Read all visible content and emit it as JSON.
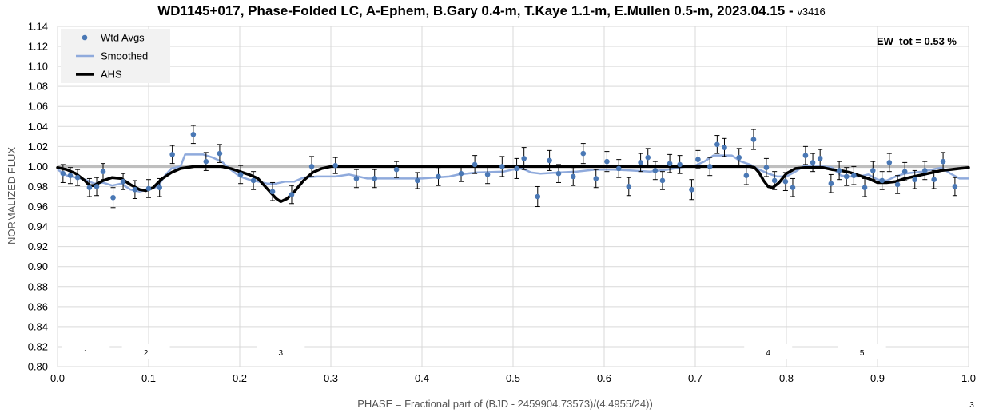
{
  "chart_data": {
    "type": "scatter",
    "title": "WD1145+017, Phase-Folded LC, A-Ephem, B.Gary 0.4-m, T.Kaye 1.1-m, E.Mullen 0.5-m, 2023.04.15 -",
    "title_version": "v3416",
    "xlabel": "PHASE = Fractional part of (BJD - 2459904.73573)/(4.4955/24))",
    "ylabel": "NORMALIZED FLUX",
    "xlim": [
      0.0,
      1.0
    ],
    "ylim": [
      0.8,
      1.14
    ],
    "xticks": [
      "0.0",
      "0.1",
      "0.2",
      "0.3",
      "0.4",
      "0.5",
      "0.6",
      "0.7",
      "0.8",
      "0.9",
      "1.0"
    ],
    "yticks": [
      "0.80",
      "0.82",
      "0.84",
      "0.86",
      "0.88",
      "0.90",
      "0.92",
      "0.94",
      "0.96",
      "0.98",
      "1.00",
      "1.02",
      "1.04",
      "1.06",
      "1.08",
      "1.10",
      "1.12",
      "1.14"
    ],
    "grid": true,
    "reference_line": 1.0,
    "legend_position": "top-left",
    "legend": [
      "Wtd Avgs",
      "Smoothed",
      "AHS"
    ],
    "annotation": "EW_tot = 0.53 %",
    "corner_note": "3",
    "colors": {
      "points": "#4a78b5",
      "smoothed": "#8faadc",
      "ahs": "#000000",
      "reference": "#bfbfbf"
    },
    "dip_labels": [
      {
        "x": 0.031,
        "label": "1"
      },
      {
        "x": 0.097,
        "label": "2"
      },
      {
        "x": 0.245,
        "label": "3"
      },
      {
        "x": 0.78,
        "label": "4"
      },
      {
        "x": 0.883,
        "label": "5"
      }
    ],
    "series": [
      {
        "name": "Wtd Avgs",
        "type": "scatter",
        "points": [
          {
            "x": 0.006,
            "y": 0.993,
            "err": 0.009
          },
          {
            "x": 0.014,
            "y": 0.991,
            "err": 0.008
          },
          {
            "x": 0.022,
            "y": 0.989,
            "err": 0.008
          },
          {
            "x": 0.035,
            "y": 0.979,
            "err": 0.009
          },
          {
            "x": 0.043,
            "y": 0.98,
            "err": 0.009
          },
          {
            "x": 0.05,
            "y": 0.995,
            "err": 0.008
          },
          {
            "x": 0.061,
            "y": 0.969,
            "err": 0.01
          },
          {
            "x": 0.072,
            "y": 0.985,
            "err": 0.008
          },
          {
            "x": 0.085,
            "y": 0.977,
            "err": 0.009
          },
          {
            "x": 0.1,
            "y": 0.978,
            "err": 0.009
          },
          {
            "x": 0.112,
            "y": 0.979,
            "err": 0.009
          },
          {
            "x": 0.126,
            "y": 1.012,
            "err": 0.009
          },
          {
            "x": 0.149,
            "y": 1.032,
            "err": 0.009
          },
          {
            "x": 0.163,
            "y": 1.005,
            "err": 0.009
          },
          {
            "x": 0.178,
            "y": 1.013,
            "err": 0.009
          },
          {
            "x": 0.201,
            "y": 0.992,
            "err": 0.009
          },
          {
            "x": 0.215,
            "y": 0.986,
            "err": 0.009
          },
          {
            "x": 0.236,
            "y": 0.975,
            "err": 0.009
          },
          {
            "x": 0.257,
            "y": 0.972,
            "err": 0.009
          },
          {
            "x": 0.279,
            "y": 1.0,
            "err": 0.01
          },
          {
            "x": 0.305,
            "y": 1.001,
            "err": 0.008
          },
          {
            "x": 0.328,
            "y": 0.988,
            "err": 0.009
          },
          {
            "x": 0.348,
            "y": 0.988,
            "err": 0.009
          },
          {
            "x": 0.372,
            "y": 0.997,
            "err": 0.008
          },
          {
            "x": 0.395,
            "y": 0.986,
            "err": 0.008
          },
          {
            "x": 0.418,
            "y": 0.99,
            "err": 0.009
          },
          {
            "x": 0.443,
            "y": 0.993,
            "err": 0.008
          },
          {
            "x": 0.458,
            "y": 1.002,
            "err": 0.009
          },
          {
            "x": 0.472,
            "y": 0.992,
            "err": 0.009
          },
          {
            "x": 0.488,
            "y": 1.0,
            "err": 0.01
          },
          {
            "x": 0.504,
            "y": 0.998,
            "err": 0.01
          },
          {
            "x": 0.512,
            "y": 1.008,
            "err": 0.011
          },
          {
            "x": 0.527,
            "y": 0.97,
            "err": 0.01
          },
          {
            "x": 0.54,
            "y": 1.006,
            "err": 0.01
          },
          {
            "x": 0.55,
            "y": 0.993,
            "err": 0.009
          },
          {
            "x": 0.566,
            "y": 0.99,
            "err": 0.009
          },
          {
            "x": 0.577,
            "y": 1.013,
            "err": 0.01
          },
          {
            "x": 0.591,
            "y": 0.988,
            "err": 0.009
          },
          {
            "x": 0.603,
            "y": 1.005,
            "err": 0.01
          },
          {
            "x": 0.616,
            "y": 0.998,
            "err": 0.009
          },
          {
            "x": 0.627,
            "y": 0.98,
            "err": 0.009
          },
          {
            "x": 0.64,
            "y": 1.004,
            "err": 0.009
          },
          {
            "x": 0.648,
            "y": 1.009,
            "err": 0.009
          },
          {
            "x": 0.656,
            "y": 0.996,
            "err": 0.009
          },
          {
            "x": 0.664,
            "y": 0.986,
            "err": 0.009
          },
          {
            "x": 0.672,
            "y": 1.003,
            "err": 0.009
          },
          {
            "x": 0.683,
            "y": 1.002,
            "err": 0.009
          },
          {
            "x": 0.696,
            "y": 0.977,
            "err": 0.01
          },
          {
            "x": 0.703,
            "y": 1.007,
            "err": 0.009
          },
          {
            "x": 0.716,
            "y": 1.0,
            "err": 0.009
          },
          {
            "x": 0.724,
            "y": 1.022,
            "err": 0.009
          },
          {
            "x": 0.732,
            "y": 1.019,
            "err": 0.009
          },
          {
            "x": 0.748,
            "y": 1.009,
            "err": 0.009
          },
          {
            "x": 0.756,
            "y": 0.991,
            "err": 0.009
          },
          {
            "x": 0.764,
            "y": 1.027,
            "err": 0.01
          },
          {
            "x": 0.778,
            "y": 0.999,
            "err": 0.009
          },
          {
            "x": 0.787,
            "y": 0.986,
            "err": 0.009
          },
          {
            "x": 0.799,
            "y": 0.985,
            "err": 0.009
          },
          {
            "x": 0.807,
            "y": 0.979,
            "err": 0.009
          },
          {
            "x": 0.821,
            "y": 1.011,
            "err": 0.009
          },
          {
            "x": 0.829,
            "y": 1.004,
            "err": 0.009
          },
          {
            "x": 0.837,
            "y": 1.008,
            "err": 0.009
          },
          {
            "x": 0.849,
            "y": 0.983,
            "err": 0.009
          },
          {
            "x": 0.858,
            "y": 0.996,
            "err": 0.009
          },
          {
            "x": 0.866,
            "y": 0.99,
            "err": 0.009
          },
          {
            "x": 0.874,
            "y": 0.991,
            "err": 0.009
          },
          {
            "x": 0.886,
            "y": 0.979,
            "err": 0.009
          },
          {
            "x": 0.895,
            "y": 0.996,
            "err": 0.009
          },
          {
            "x": 0.905,
            "y": 0.986,
            "err": 0.009
          },
          {
            "x": 0.913,
            "y": 1.004,
            "err": 0.009
          },
          {
            "x": 0.922,
            "y": 0.982,
            "err": 0.009
          },
          {
            "x": 0.93,
            "y": 0.995,
            "err": 0.009
          },
          {
            "x": 0.941,
            "y": 0.987,
            "err": 0.009
          },
          {
            "x": 0.952,
            "y": 0.996,
            "err": 0.009
          },
          {
            "x": 0.962,
            "y": 0.987,
            "err": 0.009
          },
          {
            "x": 0.972,
            "y": 1.005,
            "err": 0.009
          },
          {
            "x": 0.985,
            "y": 0.98,
            "err": 0.009
          }
        ]
      },
      {
        "name": "Smoothed",
        "type": "line",
        "points": [
          {
            "x": 0.0,
            "y": 0.997
          },
          {
            "x": 0.01,
            "y": 0.991
          },
          {
            "x": 0.02,
            "y": 0.989
          },
          {
            "x": 0.03,
            "y": 0.987
          },
          {
            "x": 0.04,
            "y": 0.983
          },
          {
            "x": 0.05,
            "y": 0.984
          },
          {
            "x": 0.06,
            "y": 0.981
          },
          {
            "x": 0.07,
            "y": 0.983
          },
          {
            "x": 0.08,
            "y": 0.977
          },
          {
            "x": 0.09,
            "y": 0.975
          },
          {
            "x": 0.1,
            "y": 0.977
          },
          {
            "x": 0.11,
            "y": 0.98
          },
          {
            "x": 0.118,
            "y": 0.991
          },
          {
            "x": 0.125,
            "y": 0.998
          },
          {
            "x": 0.135,
            "y": 1.0
          },
          {
            "x": 0.14,
            "y": 1.012
          },
          {
            "x": 0.16,
            "y": 1.012
          },
          {
            "x": 0.17,
            "y": 1.009
          },
          {
            "x": 0.18,
            "y": 1.005
          },
          {
            "x": 0.19,
            "y": 0.997
          },
          {
            "x": 0.2,
            "y": 0.99
          },
          {
            "x": 0.21,
            "y": 0.987
          },
          {
            "x": 0.22,
            "y": 0.985
          },
          {
            "x": 0.23,
            "y": 0.983
          },
          {
            "x": 0.24,
            "y": 0.983
          },
          {
            "x": 0.25,
            "y": 0.985
          },
          {
            "x": 0.26,
            "y": 0.985
          },
          {
            "x": 0.27,
            "y": 0.989
          },
          {
            "x": 0.285,
            "y": 0.99
          },
          {
            "x": 0.305,
            "y": 0.99
          },
          {
            "x": 0.32,
            "y": 0.992
          },
          {
            "x": 0.34,
            "y": 0.988
          },
          {
            "x": 0.4,
            "y": 0.988
          },
          {
            "x": 0.43,
            "y": 0.99
          },
          {
            "x": 0.44,
            "y": 0.992
          },
          {
            "x": 0.46,
            "y": 0.994
          },
          {
            "x": 0.49,
            "y": 0.995
          },
          {
            "x": 0.5,
            "y": 0.997
          },
          {
            "x": 0.51,
            "y": 0.998
          },
          {
            "x": 0.52,
            "y": 0.994
          },
          {
            "x": 0.53,
            "y": 0.993
          },
          {
            "x": 0.55,
            "y": 0.994
          },
          {
            "x": 0.57,
            "y": 0.995
          },
          {
            "x": 0.59,
            "y": 0.997
          },
          {
            "x": 0.61,
            "y": 0.997
          },
          {
            "x": 0.63,
            "y": 0.996
          },
          {
            "x": 0.65,
            "y": 0.995
          },
          {
            "x": 0.67,
            "y": 0.997
          },
          {
            "x": 0.69,
            "y": 1.0
          },
          {
            "x": 0.7,
            "y": 1.001
          },
          {
            "x": 0.71,
            "y": 1.005
          },
          {
            "x": 0.72,
            "y": 1.011
          },
          {
            "x": 0.74,
            "y": 1.011
          },
          {
            "x": 0.75,
            "y": 1.005
          },
          {
            "x": 0.76,
            "y": 1.002
          },
          {
            "x": 0.77,
            "y": 0.997
          },
          {
            "x": 0.78,
            "y": 0.993
          },
          {
            "x": 0.79,
            "y": 0.99
          },
          {
            "x": 0.8,
            "y": 0.99
          },
          {
            "x": 0.81,
            "y": 0.995
          },
          {
            "x": 0.82,
            "y": 1.001
          },
          {
            "x": 0.83,
            "y": 1.0
          },
          {
            "x": 0.84,
            "y": 1.0
          },
          {
            "x": 0.85,
            "y": 0.999
          },
          {
            "x": 0.86,
            "y": 0.991
          },
          {
            "x": 0.87,
            "y": 0.99
          },
          {
            "x": 0.88,
            "y": 0.99
          },
          {
            "x": 0.89,
            "y": 0.992
          },
          {
            "x": 0.9,
            "y": 0.987
          },
          {
            "x": 0.91,
            "y": 0.986
          },
          {
            "x": 0.92,
            "y": 0.99
          },
          {
            "x": 0.93,
            "y": 0.993
          },
          {
            "x": 0.94,
            "y": 0.994
          },
          {
            "x": 0.95,
            "y": 0.995
          },
          {
            "x": 0.96,
            "y": 0.997
          },
          {
            "x": 0.97,
            "y": 0.999
          },
          {
            "x": 0.98,
            "y": 0.993
          },
          {
            "x": 0.99,
            "y": 0.988
          },
          {
            "x": 1.0,
            "y": 0.988
          }
        ]
      },
      {
        "name": "AHS",
        "type": "line",
        "points": [
          {
            "x": 0.0,
            "y": 0.999
          },
          {
            "x": 0.01,
            "y": 0.997
          },
          {
            "x": 0.02,
            "y": 0.993
          },
          {
            "x": 0.03,
            "y": 0.986
          },
          {
            "x": 0.035,
            "y": 0.981
          },
          {
            "x": 0.04,
            "y": 0.981
          },
          {
            "x": 0.05,
            "y": 0.986
          },
          {
            "x": 0.06,
            "y": 0.989
          },
          {
            "x": 0.07,
            "y": 0.988
          },
          {
            "x": 0.08,
            "y": 0.982
          },
          {
            "x": 0.09,
            "y": 0.977
          },
          {
            "x": 0.097,
            "y": 0.976
          },
          {
            "x": 0.105,
            "y": 0.979
          },
          {
            "x": 0.115,
            "y": 0.988
          },
          {
            "x": 0.125,
            "y": 0.994
          },
          {
            "x": 0.135,
            "y": 0.998
          },
          {
            "x": 0.15,
            "y": 1.0
          },
          {
            "x": 0.18,
            "y": 1.0
          },
          {
            "x": 0.19,
            "y": 0.998
          },
          {
            "x": 0.2,
            "y": 0.995
          },
          {
            "x": 0.21,
            "y": 0.992
          },
          {
            "x": 0.22,
            "y": 0.988
          },
          {
            "x": 0.23,
            "y": 0.978
          },
          {
            "x": 0.24,
            "y": 0.968
          },
          {
            "x": 0.245,
            "y": 0.965
          },
          {
            "x": 0.252,
            "y": 0.968
          },
          {
            "x": 0.26,
            "y": 0.975
          },
          {
            "x": 0.27,
            "y": 0.986
          },
          {
            "x": 0.28,
            "y": 0.994
          },
          {
            "x": 0.29,
            "y": 0.998
          },
          {
            "x": 0.3,
            "y": 1.0
          },
          {
            "x": 0.32,
            "y": 1.0
          },
          {
            "x": 0.5,
            "y": 1.0
          },
          {
            "x": 0.76,
            "y": 1.0
          },
          {
            "x": 0.765,
            "y": 0.999
          },
          {
            "x": 0.77,
            "y": 0.994
          },
          {
            "x": 0.775,
            "y": 0.986
          },
          {
            "x": 0.78,
            "y": 0.98
          },
          {
            "x": 0.785,
            "y": 0.979
          },
          {
            "x": 0.792,
            "y": 0.984
          },
          {
            "x": 0.8,
            "y": 0.993
          },
          {
            "x": 0.81,
            "y": 0.998
          },
          {
            "x": 0.82,
            "y": 0.999
          },
          {
            "x": 0.83,
            "y": 0.999
          },
          {
            "x": 0.84,
            "y": 0.999
          },
          {
            "x": 0.85,
            "y": 0.997
          },
          {
            "x": 0.86,
            "y": 0.996
          },
          {
            "x": 0.87,
            "y": 0.994
          },
          {
            "x": 0.88,
            "y": 0.991
          },
          {
            "x": 0.89,
            "y": 0.988
          },
          {
            "x": 0.9,
            "y": 0.984
          },
          {
            "x": 0.91,
            "y": 0.984
          },
          {
            "x": 0.92,
            "y": 0.985
          },
          {
            "x": 0.93,
            "y": 0.988
          },
          {
            "x": 0.94,
            "y": 0.99
          },
          {
            "x": 0.95,
            "y": 0.992
          },
          {
            "x": 0.96,
            "y": 0.994
          },
          {
            "x": 0.97,
            "y": 0.996
          },
          {
            "x": 0.98,
            "y": 0.997
          },
          {
            "x": 0.99,
            "y": 0.998
          },
          {
            "x": 1.0,
            "y": 0.999
          }
        ]
      }
    ]
  }
}
